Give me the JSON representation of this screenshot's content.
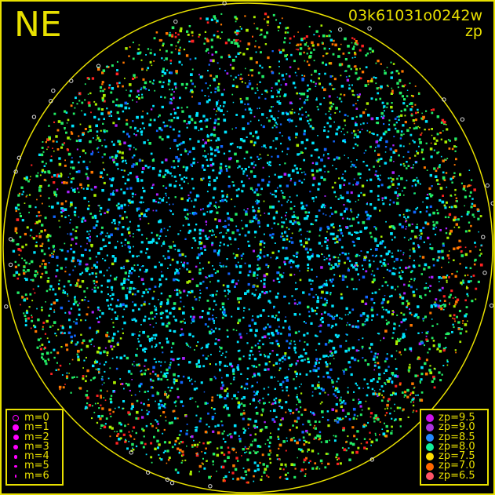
{
  "chart_data": {
    "type": "scatter",
    "direction_label": "NE",
    "title": "03k61031o0242w",
    "subtitle": "zp",
    "grid": false,
    "magnitude_legend": {
      "placement": "bottom-left",
      "entries": [
        {
          "label": "m=0",
          "style": "ring"
        },
        {
          "label": "m=1"
        },
        {
          "label": "m=2"
        },
        {
          "label": "m=3"
        },
        {
          "label": "m=4"
        },
        {
          "label": "m=5"
        },
        {
          "label": "m=6"
        }
      ],
      "color": "#ff00ff"
    },
    "zp_legend": {
      "placement": "bottom-right",
      "entries": [
        {
          "label": "zp=9.5",
          "zp": 9.5,
          "color": "#cc11ee"
        },
        {
          "label": "zp=9.0",
          "zp": 9.0,
          "color": "#aa33dd"
        },
        {
          "label": "zp=8.5",
          "zp": 8.5,
          "color": "#2288ff"
        },
        {
          "label": "zp=8.0",
          "zp": 8.0,
          "color": "#11ee99"
        },
        {
          "label": "zp=7.5",
          "zp": 7.5,
          "color": "#ffdd00"
        },
        {
          "label": "zp=7.0",
          "zp": 7.0,
          "color": "#ff6600"
        },
        {
          "label": "zp=6.5",
          "zp": 6.5,
          "color": "#ff5566"
        }
      ]
    },
    "horizon_color": "#e8e000",
    "star_colors_by_zp": {
      "8.8": "#00e5ff",
      "8.5": "#1166ff",
      "8.2": "#22ee66",
      "7.8": "#aaee00",
      "9.3": "#aa22ff",
      "7.2": "#ff7700",
      "6.8": "#ff2222"
    }
  }
}
